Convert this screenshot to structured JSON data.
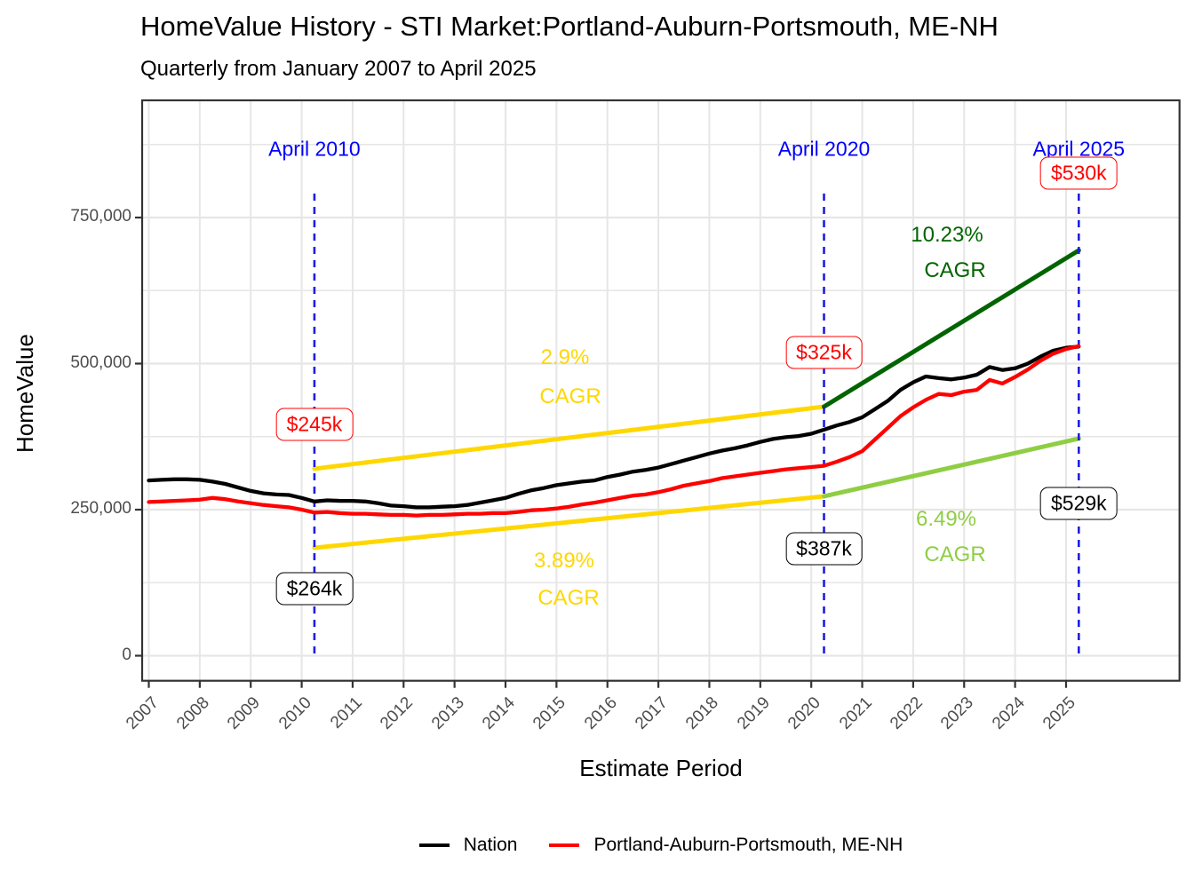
{
  "title": "HomeValue History - STI Market:Portland-Auburn-Portsmouth, ME-NH",
  "subtitle": "Quarterly from January 2007 to April 2025",
  "axes": {
    "y_title": "HomeValue",
    "x_title": "Estimate Period",
    "y_ticks": [
      {
        "value_k": 0,
        "label": "0"
      },
      {
        "value_k": 250,
        "label": "250,000"
      },
      {
        "value_k": 500,
        "label": "500,000"
      },
      {
        "value_k": 750,
        "label": "750,000"
      }
    ],
    "x_ticks": [
      "2007",
      "2008",
      "2009",
      "2010",
      "2011",
      "2012",
      "2013",
      "2014",
      "2015",
      "2016",
      "2017",
      "2018",
      "2019",
      "2020",
      "2021",
      "2022",
      "2023",
      "2024",
      "2025"
    ]
  },
  "annotations": {
    "events": [
      {
        "id": "april-2010",
        "title": "April 2010",
        "year": 2010.25,
        "market_value_label": "$245k",
        "nation_value_label": "$264k"
      },
      {
        "id": "april-2020",
        "title": "April 2020",
        "year": 2020.25,
        "market_value_label": "$325k",
        "nation_value_label": "$387k"
      },
      {
        "id": "april-2025",
        "title": "April 2025",
        "year": 2025.25,
        "market_value_label": "$530k",
        "nation_value_label": "$529k"
      }
    ],
    "cagr_lines": [
      {
        "id": "market-2010-2020",
        "rate_label": "2.9%",
        "cagr_label": "CAGR",
        "color": "#FFD700",
        "x1": 2010.25,
        "v1_k": 320.0,
        "x2": 2020.25,
        "v2_k": 426.3
      },
      {
        "id": "nation-2010-2020",
        "rate_label": "3.89%",
        "cagr_label": "CAGR",
        "color": "#FFD700",
        "x1": 2010.25,
        "v1_k": 184.7,
        "x2": 2020.25,
        "v2_k": 272.8
      },
      {
        "id": "market-2020-2025",
        "rate_label": "10.23%",
        "cagr_label": "CAGR",
        "color": "#006400",
        "x1": 2020.25,
        "v1_k": 426.3,
        "x2": 2025.25,
        "v2_k": 693.8
      },
      {
        "id": "nation-2020-2025",
        "rate_label": "6.49%",
        "cagr_label": "CAGR",
        "color": "#8FCE44",
        "x1": 2020.25,
        "v1_k": 272.8,
        "x2": 2025.25,
        "v2_k": 371.6
      }
    ]
  },
  "legend": [
    {
      "label": "Nation",
      "color": "#000000"
    },
    {
      "label": "Portland-Auburn-Portsmouth, ME-NH",
      "color": "#FF0000"
    }
  ],
  "colors": {
    "event_blue": "#0000FF",
    "vline_blue": "#1E1EE0",
    "market_red": "#FF0000",
    "nation_black": "#000000",
    "cagr_yellow": "#FFD700",
    "cagr_dark_green": "#006400",
    "cagr_light_green": "#8FCE44",
    "grid_gray": "#E6E6E6",
    "axis_dark": "#333333",
    "tick_label_gray": "#4d4d4d"
  },
  "chart_data": {
    "type": "line",
    "title": "HomeValue History - STI Market:Portland-Auburn-Portsmouth, ME-NH",
    "subtitle": "Quarterly from January 2007 to April 2025",
    "xlabel": "Estimate Period",
    "ylabel": "HomeValue",
    "units": "USD thousands",
    "x_range": [
      2006.9,
      2027.2
    ],
    "y_range_k": [
      -43,
      950
    ],
    "grid": true,
    "legend_position": "bottom",
    "x": [
      2007.0,
      2007.25,
      2007.5,
      2007.75,
      2008.0,
      2008.25,
      2008.5,
      2008.75,
      2009.0,
      2009.25,
      2009.5,
      2009.75,
      2010.0,
      2010.25,
      2010.5,
      2010.75,
      2011.0,
      2011.25,
      2011.5,
      2011.75,
      2012.0,
      2012.25,
      2012.5,
      2012.75,
      2013.0,
      2013.25,
      2013.5,
      2013.75,
      2014.0,
      2014.25,
      2014.5,
      2014.75,
      2015.0,
      2015.25,
      2015.5,
      2015.75,
      2016.0,
      2016.25,
      2016.5,
      2016.75,
      2017.0,
      2017.25,
      2017.5,
      2017.75,
      2018.0,
      2018.25,
      2018.5,
      2018.75,
      2019.0,
      2019.25,
      2019.5,
      2019.75,
      2020.0,
      2020.25,
      2020.5,
      2020.75,
      2021.0,
      2021.25,
      2021.5,
      2021.75,
      2022.0,
      2022.25,
      2022.5,
      2022.75,
      2023.0,
      2023.25,
      2023.5,
      2023.75,
      2024.0,
      2024.25,
      2024.5,
      2024.75,
      2025.0,
      2025.25
    ],
    "series": [
      {
        "name": "Nation",
        "color": "#000000",
        "values_k": [
          300,
          301,
          302,
          302,
          301,
          298,
          294,
          288,
          282,
          278,
          276,
          275,
          270,
          264,
          266,
          265,
          265,
          264,
          261,
          257,
          256,
          254,
          254,
          255,
          256,
          258,
          262,
          266,
          270,
          277,
          283,
          287,
          292,
          295,
          298,
          300,
          306,
          310,
          315,
          318,
          322,
          328,
          334,
          340,
          346,
          351,
          355,
          360,
          366,
          371,
          374,
          376,
          380,
          387,
          394,
          400,
          408,
          422,
          436,
          455,
          468,
          478,
          475,
          473,
          476,
          481,
          494,
          489,
          492,
          500,
          512,
          522,
          527,
          529
        ]
      },
      {
        "name": "Portland-Auburn-Portsmouth, ME-NH",
        "color": "#FF0000",
        "values_k": [
          263,
          264,
          265,
          266,
          267,
          270,
          268,
          264,
          261,
          258,
          256,
          254,
          250,
          245,
          246,
          244,
          243,
          243,
          242,
          241,
          241,
          240,
          241,
          241,
          242,
          243,
          243,
          244,
          244,
          246,
          249,
          250,
          252,
          255,
          259,
          262,
          266,
          270,
          274,
          276,
          280,
          285,
          291,
          295,
          299,
          304,
          307,
          310,
          313,
          316,
          319,
          321,
          323,
          325,
          332,
          340,
          350,
          370,
          390,
          410,
          425,
          438,
          448,
          446,
          452,
          455,
          472,
          466,
          477,
          490,
          505,
          517,
          525,
          530
        ]
      }
    ],
    "event_markers": [
      {
        "label": "April 2010",
        "x": 2010.25,
        "nation_k": 264,
        "market_k": 245
      },
      {
        "label": "April 2020",
        "x": 2020.25,
        "nation_k": 387,
        "market_k": 325
      },
      {
        "label": "April 2025",
        "x": 2025.25,
        "nation_k": 529,
        "market_k": 530
      }
    ]
  }
}
